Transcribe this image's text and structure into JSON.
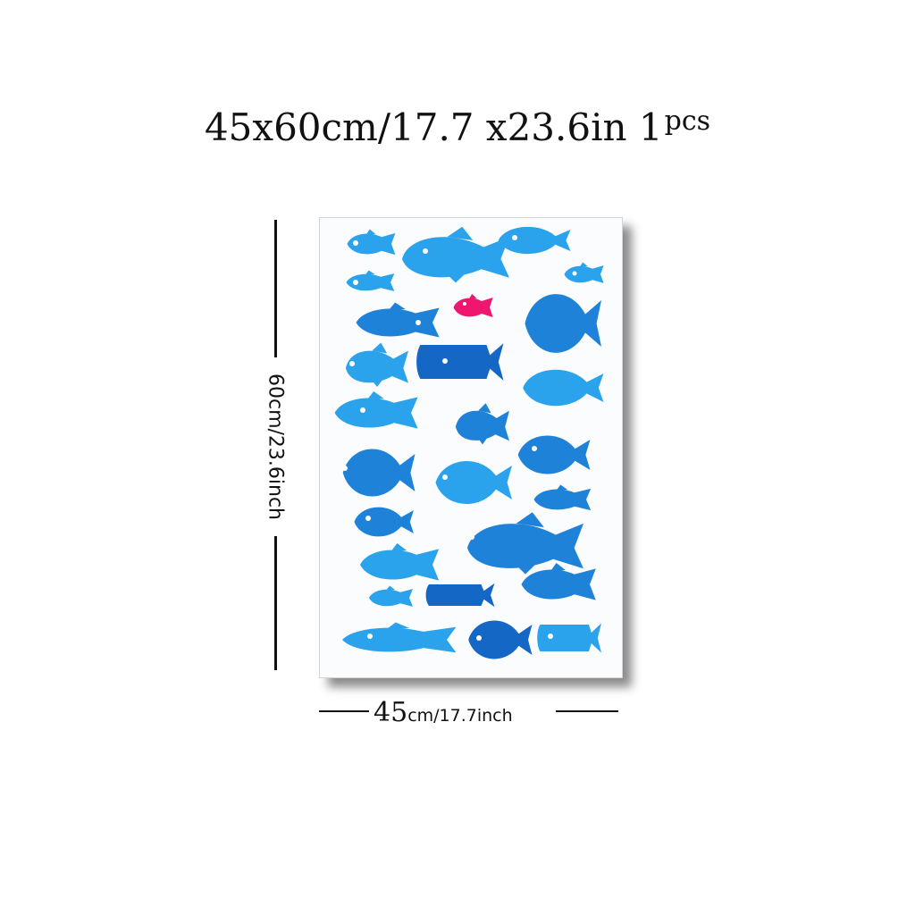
{
  "title": {
    "dims": "45x60cm/17.7 x23.6in",
    "qty_num": "1",
    "qty_unit": "pcs"
  },
  "height_label": "60cm/23.6inch",
  "width_label": {
    "num": "45",
    "unit": "cm/17.7inch"
  },
  "colors": {
    "light_blue": "#2aa3ec",
    "mid_blue": "#1e83d8",
    "dark_blue": "#1467c4",
    "pink": "#f0156e"
  }
}
